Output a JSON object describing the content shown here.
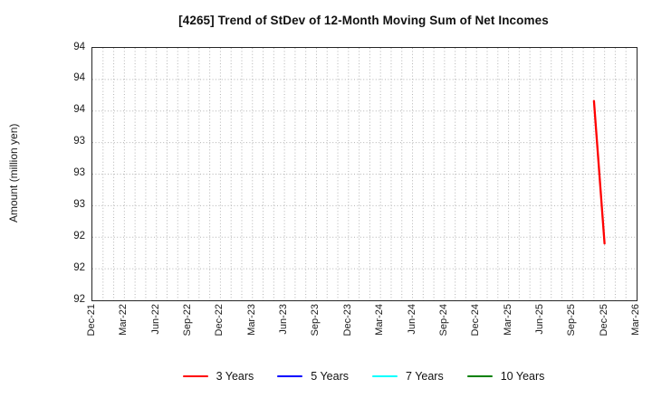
{
  "chart_data": {
    "type": "line",
    "title": "[4265]  Trend of StDev of 12-Month Moving Sum of Net Incomes",
    "ylabel": "Amount (million yen)",
    "ylim": [
      92,
      94
    ],
    "ytick_values": [
      92,
      92.25,
      92.5,
      92.75,
      93,
      93.25,
      93.5,
      93.75,
      94
    ],
    "ytick_labels": [
      "92",
      "92",
      "92",
      "93",
      "93",
      "93",
      "94",
      "94",
      "94"
    ],
    "x_axis": {
      "start_month": "Dec-21",
      "end_month": "Mar-26",
      "total_month_span": 51,
      "tick_labels": [
        "Dec-21",
        "Mar-22",
        "Jun-22",
        "Sep-22",
        "Dec-22",
        "Mar-23",
        "Jun-23",
        "Sep-23",
        "Dec-23",
        "Mar-24",
        "Jun-24",
        "Sep-24",
        "Dec-24",
        "Mar-25",
        "Jun-25",
        "Sep-25",
        "Dec-25",
        "Mar-26"
      ],
      "tick_month_indices": [
        0,
        3,
        6,
        9,
        12,
        15,
        18,
        21,
        24,
        27,
        30,
        33,
        36,
        39,
        42,
        45,
        48,
        51
      ]
    },
    "grid": {
      "horizontal": "dotted",
      "vertical": "dotted-monthly",
      "color": "#b3b3b3"
    },
    "legend_position": "bottom",
    "series": [
      {
        "name": "3 Years",
        "color": "#ff0000",
        "points": [
          {
            "label": "Nov-25",
            "month_index": 47,
            "value": 93.58
          },
          {
            "label": "Dec-25",
            "month_index": 48,
            "value": 92.45
          }
        ]
      },
      {
        "name": "5 Years",
        "color": "#0000ff",
        "points": []
      },
      {
        "name": "7 Years",
        "color": "#00ffff",
        "points": []
      },
      {
        "name": "10 Years",
        "color": "#008000",
        "points": []
      }
    ]
  }
}
